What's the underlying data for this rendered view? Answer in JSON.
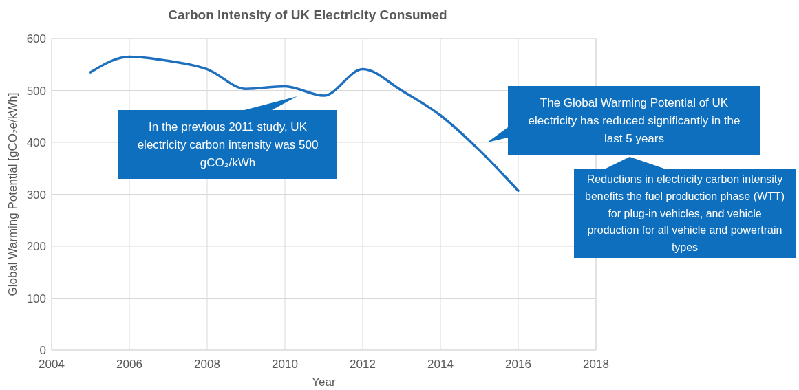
{
  "chart_data": {
    "type": "line",
    "title": "Carbon Intensity of UK Electricity Consumed",
    "xlabel": "Year",
    "ylabel": "Global Warming Potential [gCO₂e/kWh]",
    "x": [
      2005,
      2006,
      2007,
      2008,
      2009,
      2010,
      2011,
      2012,
      2013,
      2014,
      2015,
      2016
    ],
    "series": [
      {
        "color": "#1f6fbf",
        "values": [
          535,
          565,
          557,
          541,
          503,
          508,
          490,
          541,
          500,
          452,
          385,
          307
        ]
      }
    ],
    "xlim": [
      2004,
      2018
    ],
    "xticks": [
      2004,
      2006,
      2008,
      2010,
      2012,
      2014,
      2016,
      2018
    ],
    "ylim": [
      0,
      600
    ],
    "yticks": [
      0,
      100,
      200,
      300,
      400,
      500,
      600
    ],
    "grid": true,
    "marker": "none",
    "line_style": "solid",
    "annotations": [
      "In the previous 2011 study, UK electricity carbon intensity was 500 gCO₂/kWh",
      "The Global Warming Potential of UK electricity has reduced significantly in the last 5 years",
      "Reductions in electricity carbon intensity benefits the fuel production phase (WTT) for plug-in vehicles, and vehicle production for all vehicle and powertrain types"
    ]
  }
}
